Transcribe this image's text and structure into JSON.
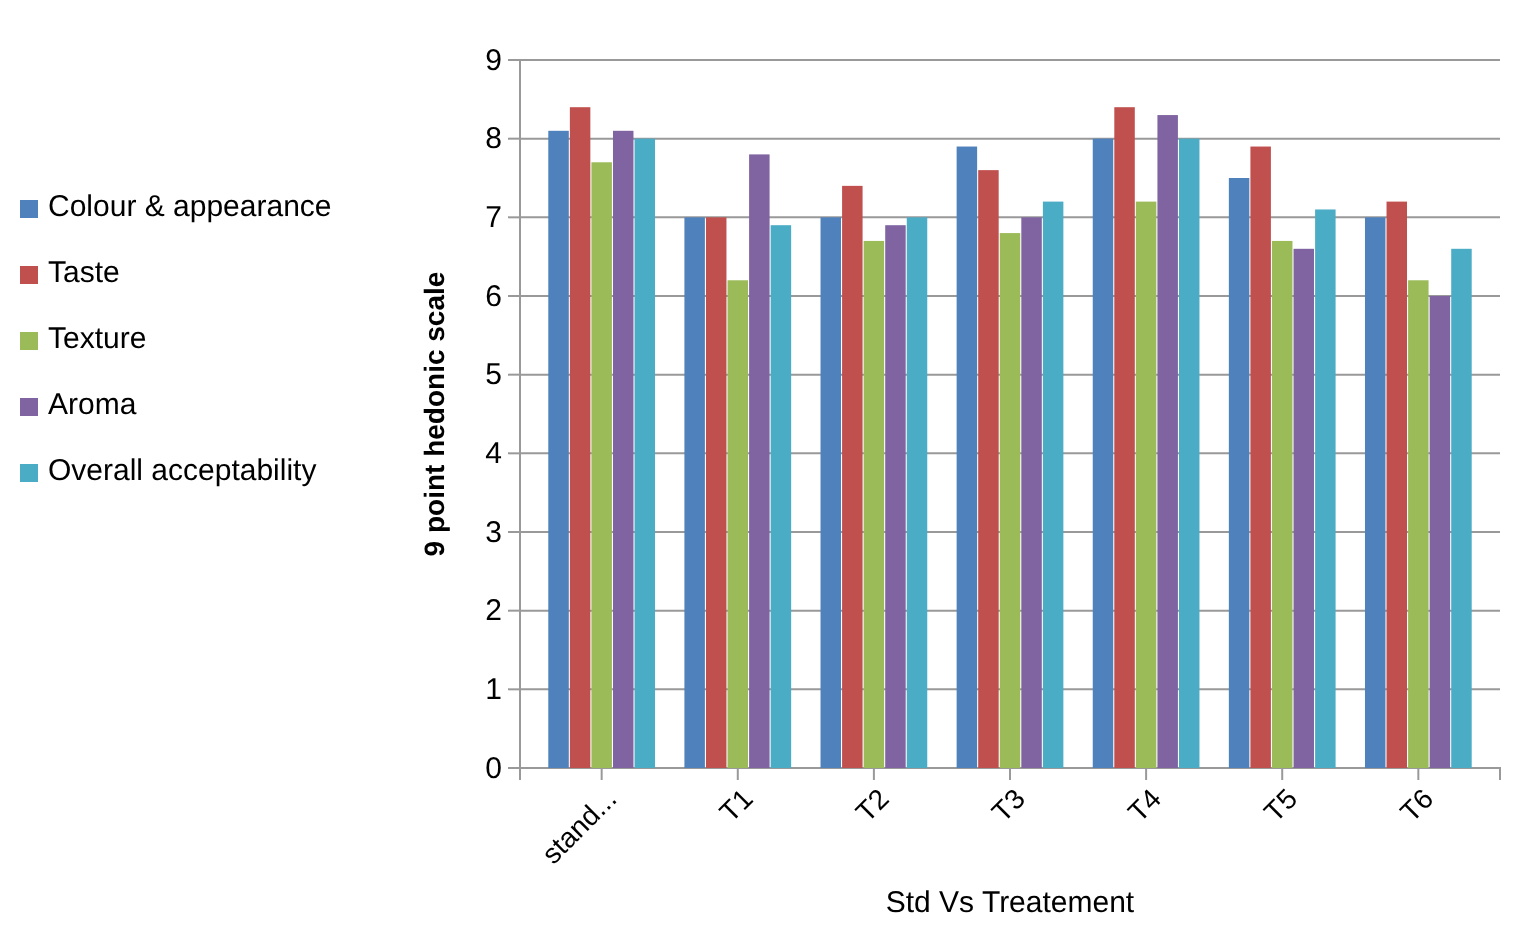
{
  "chart_data": {
    "type": "bar",
    "xlabel": "Std Vs Treatement",
    "ylabel": "9 point hedonic scale",
    "categories": [
      "stand...",
      "T1",
      "T2",
      "T3",
      "T4",
      "T5",
      "T6"
    ],
    "series": [
      {
        "name": "Colour & appearance",
        "color": "#4f81bd",
        "values": [
          8.1,
          7.0,
          7.0,
          7.9,
          8.0,
          7.5,
          7.0
        ]
      },
      {
        "name": "Taste",
        "color": "#c0504d",
        "values": [
          8.4,
          7.0,
          7.4,
          7.6,
          8.4,
          7.9,
          7.2
        ]
      },
      {
        "name": "Texture",
        "color": "#9bbb59",
        "values": [
          7.7,
          6.2,
          6.7,
          6.8,
          7.2,
          6.7,
          6.2
        ]
      },
      {
        "name": "Aroma",
        "color": "#8064a2",
        "values": [
          8.1,
          7.8,
          6.9,
          7.0,
          8.3,
          6.6,
          6.0
        ]
      },
      {
        "name": "Overall acceptability",
        "color": "#4bacc6",
        "values": [
          8.0,
          6.9,
          7.0,
          7.2,
          8.0,
          7.1,
          6.6
        ]
      }
    ],
    "ylim": [
      0,
      9
    ],
    "yticks": [
      0,
      1,
      2,
      3,
      4,
      5,
      6,
      7,
      8,
      9
    ],
    "grid": "y",
    "legend": "left"
  }
}
